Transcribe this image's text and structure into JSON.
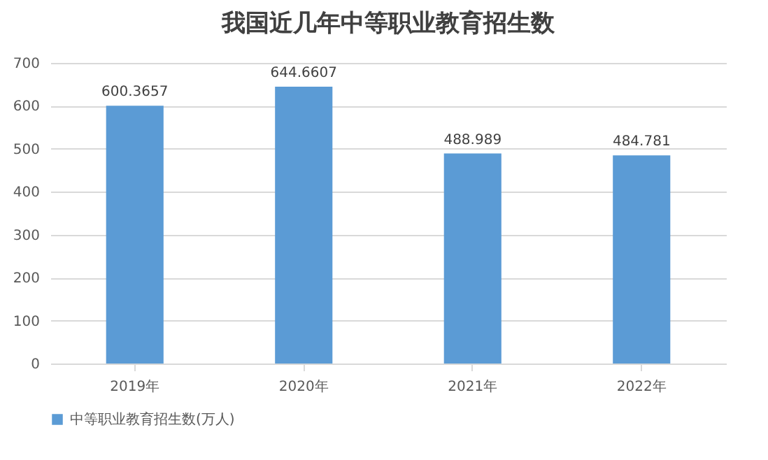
{
  "chart_data": {
    "type": "bar",
    "title": "我国近几年中等职业教育招生数",
    "categories": [
      "2019年",
      "2020年",
      "2021年",
      "2022年"
    ],
    "series": [
      {
        "name": "中等职业教育招生数(万人)",
        "color": "#5b9bd5",
        "values": [
          600.3657,
          644.6607,
          488.989,
          484.781
        ]
      }
    ],
    "ylim": [
      0,
      700
    ],
    "yticks": [
      0,
      100,
      200,
      300,
      400,
      500,
      600,
      700
    ],
    "grid": "y",
    "legend": "bottom",
    "data_labels": true
  }
}
